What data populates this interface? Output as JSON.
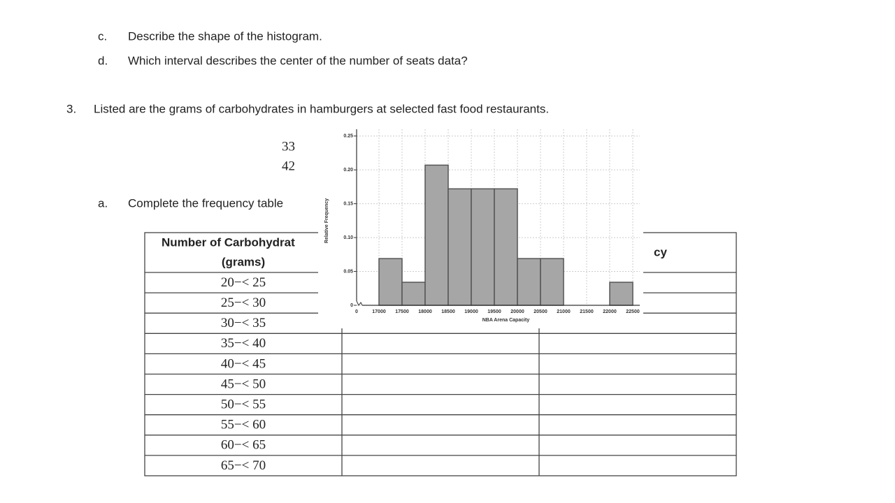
{
  "items": [
    {
      "marker": "c.",
      "text": "Describe the shape of the histogram."
    },
    {
      "marker": "d.",
      "text": "Which interval describes the center of the number of seats data?"
    }
  ],
  "question": {
    "number": "3.",
    "text": "Listed are the grams of carbohydrates in hamburgers at selected fast food restaurants.",
    "values": [
      "33",
      "42"
    ],
    "part": {
      "marker": "a.",
      "text": "Complete the frequency table"
    }
  },
  "table": {
    "header": {
      "first": [
        "Number of Carbohydrat",
        "(grams)"
      ],
      "last": "cy"
    },
    "rows": [
      "20−< 25",
      "25−< 30",
      "30−< 35",
      "35−< 40",
      "40−< 45",
      "45−< 50",
      "50−< 55",
      "55−< 60",
      "60−< 65",
      "65−< 70"
    ]
  },
  "chart_data": {
    "type": "histogram",
    "x_label": "NBA Arena Capacity",
    "y_label": "Relative Frequency",
    "bins": [
      17000,
      17500,
      18000,
      18500,
      19000,
      19500,
      20000,
      20500,
      21000,
      21500,
      22000,
      22500
    ],
    "values": [
      0.069,
      0.034,
      0.207,
      0.172,
      0.172,
      0.172,
      0.069,
      0.069,
      0,
      0,
      0.034
    ],
    "color": "#a6a6a6",
    "xlim": [
      17000,
      22500
    ],
    "x_origin_tick": 0,
    "xticks": [
      17000,
      17500,
      18000,
      18500,
      19000,
      19500,
      20000,
      20500,
      21000,
      21500,
      22000,
      22500
    ],
    "ylim": [
      0,
      0.26
    ],
    "yticks": [
      0,
      0.05,
      {
        "value": 0.1,
        "label": "0.10"
      },
      0.15,
      {
        "value": 0.2,
        "label": "0.20"
      },
      0.25
    ],
    "grid": true
  }
}
